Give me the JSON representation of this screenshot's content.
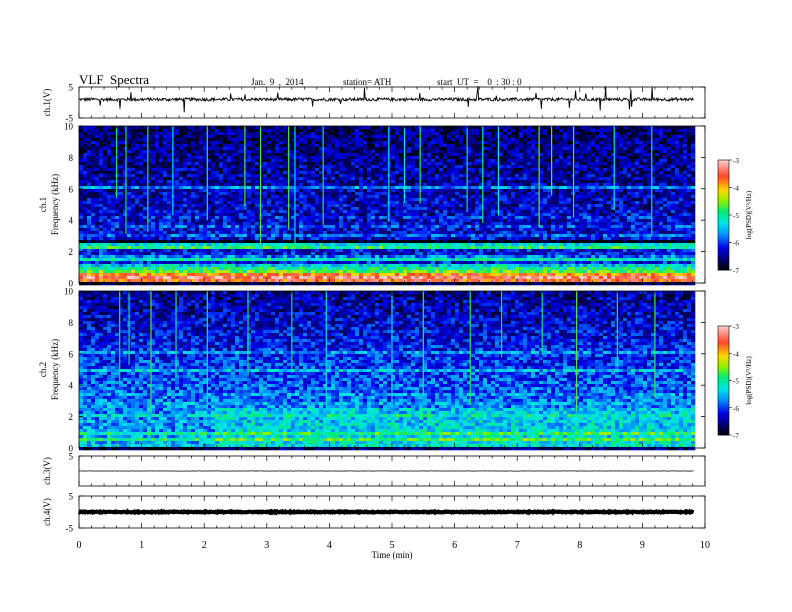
{
  "header": {
    "title": "VLF  Spectra",
    "date": "Jan.  9  ,  2014",
    "station": "station= ATH",
    "start": "start  UT  =    0  : 30 : 0"
  },
  "chart_data": [
    {
      "type": "line",
      "panel": "ch1-waveform",
      "ylabel": "ch.1(V)",
      "ylim": [
        -5,
        5
      ],
      "yticks": [
        5,
        -5
      ],
      "x_range": [
        0,
        9.82
      ],
      "baseline_v": 1.0,
      "noise_amplitude_v": 0.5,
      "series": [
        {
          "values": []
        }
      ]
    },
    {
      "type": "heatmap",
      "panel": "ch1-spectrogram",
      "ylabel": [
        "ch.1",
        "Frequency  (kHz)"
      ],
      "ylim": [
        0,
        10
      ],
      "yticks": [
        0,
        2,
        4,
        6,
        8,
        10
      ],
      "x_range": [
        0,
        9.82
      ],
      "colorbar": {
        "label": "log(PSD)(V²/Hz)",
        "ticks": [
          -3,
          -4,
          -5,
          -6,
          -7
        ],
        "range": [
          -7,
          -3
        ]
      },
      "colormap": [
        "#000000",
        "#00008b",
        "#0000ff",
        "#00bfff",
        "#00ff7f",
        "#7fff00",
        "#ffd700",
        "#ff4500",
        "#ffcccc"
      ],
      "bands": [
        {
          "f": 0.05,
          "v": -6.8
        },
        {
          "f": 0.2,
          "v": -3.6
        },
        {
          "f": 0.35,
          "v": -3.3
        },
        {
          "f": 0.5,
          "v": -3.8
        },
        {
          "f": 0.7,
          "v": -4.6
        },
        {
          "f": 0.95,
          "v": -5.0
        },
        {
          "f": 1.2,
          "v": -5.4
        },
        {
          "f": 1.5,
          "v": -5.2
        },
        {
          "f": 1.75,
          "v": -5.8
        },
        {
          "f": 2.2,
          "v": -4.9
        },
        {
          "f": 2.45,
          "v": -5.3
        },
        {
          "f": 2.7,
          "v": -7.0
        },
        {
          "f": 3.1,
          "v": -5.9
        },
        {
          "f": 3.6,
          "v": -6.0
        },
        {
          "f": 4.2,
          "v": -6.1
        },
        {
          "f": 5.8,
          "v": -5.6
        },
        {
          "f": 6.15,
          "v": -5.7
        }
      ],
      "background_low": -6.1,
      "background_high": -6.6,
      "spike_times": [
        0.6,
        0.75,
        1.1,
        1.5,
        2.05,
        2.65,
        2.9,
        3.35,
        3.45,
        3.9,
        4.95,
        5.2,
        5.45,
        6.2,
        6.45,
        6.7,
        7.35,
        7.55,
        7.9,
        8.55,
        9.15
      ]
    },
    {
      "type": "heatmap",
      "panel": "ch2-spectrogram",
      "ylabel": [
        "ch.2",
        "Frequency  (kHz)"
      ],
      "ylim": [
        0,
        10
      ],
      "yticks": [
        0,
        2,
        4,
        6,
        8,
        10
      ],
      "x_range": [
        0,
        9.82
      ],
      "colorbar": {
        "label": "log(PSD)(V²/Hz)",
        "ticks": [
          -3,
          -4,
          -5,
          -6,
          -7
        ],
        "range": [
          -7,
          -3
        ]
      },
      "bands": [
        {
          "f": 0.05,
          "v": -6.8
        },
        {
          "f": 0.25,
          "v": -5.2
        },
        {
          "f": 0.55,
          "v": -5.0
        },
        {
          "f": 0.9,
          "v": -5.1
        },
        {
          "f": 1.4,
          "v": -5.3
        },
        {
          "f": 2.1,
          "v": -5.4
        },
        {
          "f": 2.9,
          "v": -5.6
        },
        {
          "f": 3.4,
          "v": -5.7
        },
        {
          "f": 4.9,
          "v": -5.5
        },
        {
          "f": 5.6,
          "v": -5.6
        },
        {
          "f": 6.1,
          "v": -5.7
        }
      ],
      "background_low": -5.5,
      "background_high": -6.5,
      "spike_times": [
        0.65,
        0.8,
        1.15,
        1.55,
        2.05,
        2.7,
        3.4,
        3.95,
        5.0,
        5.5,
        6.25,
        6.75,
        7.4,
        7.95,
        8.6,
        9.2
      ]
    },
    {
      "type": "line",
      "panel": "ch3-waveform",
      "ylabel": "ch.3(V)",
      "ylim": [
        -5,
        5
      ],
      "yticks": [
        5
      ],
      "x_range": [
        0,
        9.82
      ],
      "baseline_v": 0.0,
      "noise_amplitude_v": 0.05,
      "series": [
        {
          "values": []
        }
      ]
    },
    {
      "type": "line",
      "panel": "ch4-waveform",
      "ylabel": "ch.4(V)",
      "ylim": [
        -5,
        5
      ],
      "yticks": [
        5,
        -5
      ],
      "x_range": [
        0,
        9.82
      ],
      "baseline_v": 0.0,
      "noise_amplitude_v": 0.15,
      "series": [
        {
          "values": []
        }
      ]
    }
  ],
  "x_axis": {
    "label": "Time  (min)",
    "ticks": [
      "0",
      "1",
      "2",
      "3",
      "4",
      "5",
      "6",
      "7",
      "8",
      "9",
      "10"
    ],
    "range": [
      0,
      10
    ]
  }
}
